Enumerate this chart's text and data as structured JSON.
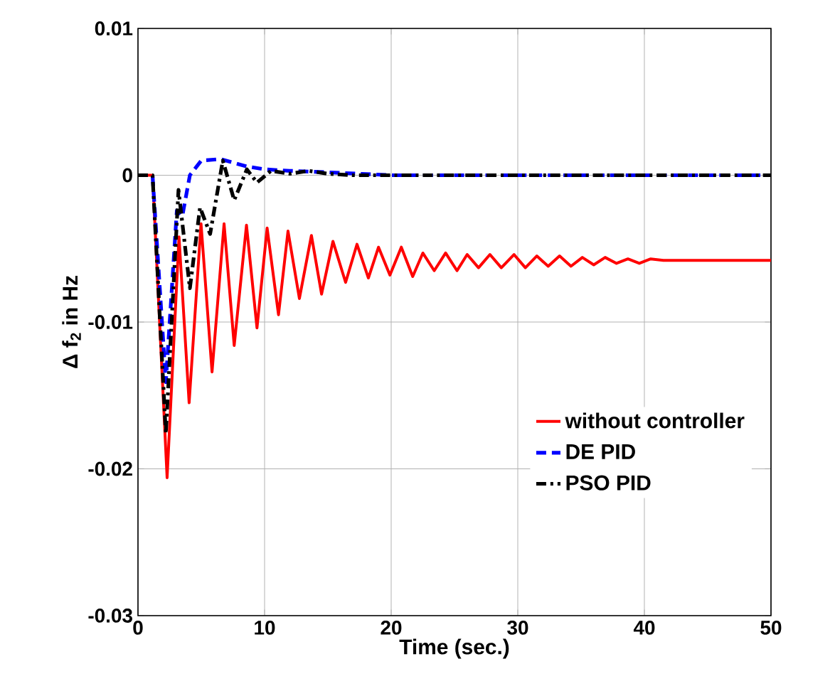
{
  "chart_data": {
    "type": "line",
    "xlabel": "Time (sec.)",
    "ylabel": "Δ f$_{2}$  in Hz",
    "xlim": [
      0,
      50
    ],
    "ylim": [
      -0.03,
      0.01
    ],
    "xticks": [
      0,
      10,
      20,
      30,
      40,
      50
    ],
    "yticks": [
      -0.03,
      -0.02,
      -0.01,
      0,
      0.01
    ],
    "grid": true,
    "legend": "bottom right",
    "series": [
      {
        "name": "without controller",
        "color": "#ff0000",
        "line_style": "solid",
        "x": [
          0,
          1.15,
          2.3,
          3.24,
          4.04,
          4.98,
          5.85,
          6.8,
          7.6,
          8.57,
          9.4,
          10.2,
          11.1,
          11.85,
          12.75,
          13.7,
          14.5,
          15.4,
          16.4,
          17.3,
          18.2,
          19.0,
          19.9,
          20.8,
          21.7,
          22.5,
          23.4,
          24.3,
          25.2,
          26.0,
          26.9,
          27.8,
          28.7,
          29.7,
          30.6,
          31.5,
          32.4,
          33.3,
          34.2,
          35.1,
          36.0,
          36.9,
          37.8,
          38.7,
          39.6,
          40.5,
          41.5,
          50
        ],
        "values": [
          0,
          0,
          -0.0206,
          -0.0042,
          -0.0155,
          -0.0033,
          -0.0134,
          -0.0033,
          -0.0116,
          -0.0034,
          -0.0104,
          -0.0036,
          -0.0095,
          -0.0038,
          -0.0084,
          -0.0041,
          -0.0081,
          -0.0045,
          -0.0073,
          -0.0047,
          -0.007,
          -0.0049,
          -0.0068,
          -0.0049,
          -0.0069,
          -0.0053,
          -0.0065,
          -0.0053,
          -0.0065,
          -0.0054,
          -0.0063,
          -0.0054,
          -0.0063,
          -0.0054,
          -0.0063,
          -0.0055,
          -0.0062,
          -0.0055,
          -0.0062,
          -0.0056,
          -0.0061,
          -0.0056,
          -0.006,
          -0.0057,
          -0.006,
          -0.0057,
          -0.0058,
          -0.0058
        ]
      },
      {
        "name": "DE PID",
        "color": "#0000ff",
        "line_style": "dashed",
        "x": [
          0,
          1.15,
          2.2,
          3.07,
          3.5,
          4.1,
          5.0,
          6.5,
          8.6,
          10,
          12,
          15,
          20,
          50
        ],
        "values": [
          0,
          0,
          -0.0141,
          -0.0024,
          -0.0028,
          0,
          0.001,
          0.0011,
          0.0006,
          0.0004,
          0.0003,
          0.0002,
          0,
          0
        ]
      },
      {
        "name": "PSO PID",
        "color": "#000000",
        "line_style": "dashdot",
        "x": [
          0,
          1.15,
          2.2,
          3.2,
          4.1,
          4.9,
          5.7,
          6.7,
          7.6,
          8.6,
          9.4,
          10.5,
          12,
          13.5,
          15,
          17,
          50
        ],
        "values": [
          0,
          0,
          -0.0176,
          -0.001,
          -0.0077,
          -0.0022,
          -0.004,
          0.001,
          -0.0017,
          0.0004,
          -0.0005,
          0.0003,
          0.0001,
          0.0003,
          0.0001,
          0,
          0
        ]
      }
    ]
  }
}
